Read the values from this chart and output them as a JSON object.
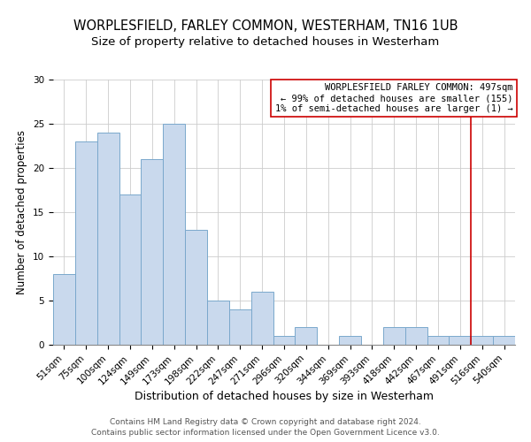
{
  "title": "WORPLESFIELD, FARLEY COMMON, WESTERHAM, TN16 1UB",
  "subtitle": "Size of property relative to detached houses in Westerham",
  "xlabel": "Distribution of detached houses by size in Westerham",
  "ylabel": "Number of detached properties",
  "bar_labels": [
    "51sqm",
    "75sqm",
    "100sqm",
    "124sqm",
    "149sqm",
    "173sqm",
    "198sqm",
    "222sqm",
    "247sqm",
    "271sqm",
    "296sqm",
    "320sqm",
    "344sqm",
    "369sqm",
    "393sqm",
    "418sqm",
    "442sqm",
    "467sqm",
    "491sqm",
    "516sqm",
    "540sqm"
  ],
  "bar_values": [
    8,
    23,
    24,
    17,
    21,
    25,
    13,
    5,
    4,
    6,
    1,
    2,
    0,
    1,
    0,
    2,
    2,
    1,
    1,
    1,
    1
  ],
  "bar_color": "#c9d9ed",
  "bar_edge_color": "#7aa8cc",
  "ylim": [
    0,
    30
  ],
  "yticks": [
    0,
    5,
    10,
    15,
    20,
    25,
    30
  ],
  "vline_x": 18.5,
  "vline_color": "#cc0000",
  "annotation_line1": "WORPLESFIELD FARLEY COMMON: 497sqm",
  "annotation_line2": "← 99% of detached houses are smaller (155)",
  "annotation_line3": "1% of semi-detached houses are larger (1) →",
  "annotation_box_edgecolor": "#cc0000",
  "footer1": "Contains HM Land Registry data © Crown copyright and database right 2024.",
  "footer2": "Contains public sector information licensed under the Open Government Licence v3.0.",
  "title_fontsize": 10.5,
  "subtitle_fontsize": 9.5,
  "xlabel_fontsize": 9,
  "ylabel_fontsize": 8.5,
  "tick_fontsize": 7.5,
  "annotation_fontsize": 7.5,
  "footer_fontsize": 6.5
}
